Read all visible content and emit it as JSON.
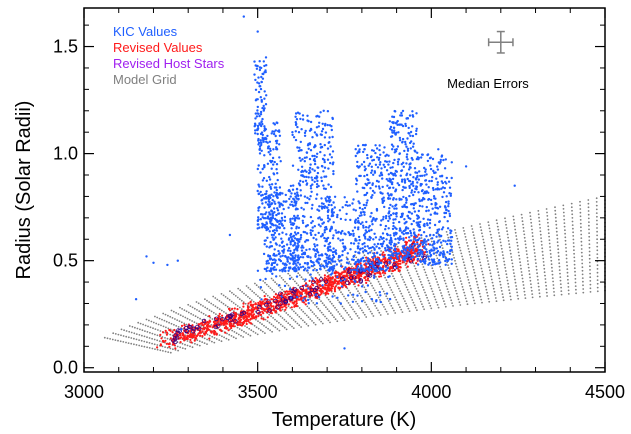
{
  "chart_data": {
    "type": "scatter",
    "title": "",
    "xlabel": "Temperature (K)",
    "ylabel": "Radius (Solar Radii)",
    "xlim": [
      3000,
      4500
    ],
    "ylim": [
      -0.02,
      1.68
    ],
    "xticks": [
      3000,
      3500,
      4000,
      4500
    ],
    "xtick_labels": [
      "3000",
      "3500",
      "4000",
      "4500"
    ],
    "yticks": [
      0.0,
      0.5,
      1.0,
      1.5
    ],
    "ytick_labels": [
      "0.0",
      "0.5",
      "1.0",
      "1.5"
    ],
    "x_minor_step": 100,
    "y_minor_step": 0.1,
    "grid": false,
    "legend_position": "top-left",
    "series": [
      {
        "name": "KIC Values",
        "color": "#1f5fff",
        "marker": "dot",
        "clusters": [
          {
            "x": [
              3490,
              3525
            ],
            "y": [
              1.05,
              1.45
            ],
            "n": 90
          },
          {
            "x": [
              3500,
              3570
            ],
            "y": [
              0.65,
              1.15
            ],
            "n": 180
          },
          {
            "x": [
              3520,
              3620
            ],
            "y": [
              0.45,
              0.85
            ],
            "n": 260
          },
          {
            "x": [
              3600,
              3720
            ],
            "y": [
              0.45,
              1.2
            ],
            "n": 420
          },
          {
            "x": [
              3700,
              3780
            ],
            "y": [
              0.45,
              0.8
            ],
            "n": 90
          },
          {
            "x": [
              3780,
              3880
            ],
            "y": [
              0.45,
              1.05
            ],
            "n": 340
          },
          {
            "x": [
              3880,
              3960
            ],
            "y": [
              0.5,
              1.2
            ],
            "n": 360
          },
          {
            "x": [
              3960,
              4060
            ],
            "y": [
              0.48,
              1.0
            ],
            "n": 300
          },
          {
            "x": [
              3500,
              3900
            ],
            "y": [
              0.3,
              0.55
            ],
            "n": 90
          }
        ],
        "outliers": [
          [
            3460,
            1.64
          ],
          [
            3500,
            1.57
          ],
          [
            3520,
            1.38
          ],
          [
            3690,
            1.2
          ],
          [
            3180,
            0.52
          ],
          [
            3200,
            0.49
          ],
          [
            3240,
            0.48
          ],
          [
            3270,
            0.5
          ],
          [
            3150,
            0.32
          ],
          [
            3750,
            0.09
          ],
          [
            4240,
            0.85
          ],
          [
            4100,
            0.94
          ],
          [
            4020,
            1.02
          ],
          [
            3600,
            1.1
          ],
          [
            3420,
            0.62
          ],
          [
            3280,
            0.18
          ]
        ]
      },
      {
        "name": "Revised Values",
        "color": "#ff1a1a",
        "marker": "dot",
        "band": {
          "t0": [
            3200,
            3250
          ],
          "t1": [
            3950,
            4000
          ],
          "r0": [
            0.1,
            0.15
          ],
          "r1": [
            0.52,
            0.6
          ],
          "n": 1400
        }
      },
      {
        "name": "Revised Host Stars",
        "color": "#a020f0",
        "marker": "open-circle",
        "band": {
          "t0": [
            3230,
            3260
          ],
          "t1": [
            3950,
            3995
          ],
          "r0": [
            0.12,
            0.16
          ],
          "r1": [
            0.5,
            0.58
          ],
          "n": 90
        }
      },
      {
        "name": "Model Grid",
        "color": "#808080",
        "marker": "dot",
        "tracks": {
          "count": 26,
          "t_start": [
            3060,
            3250
          ],
          "r_start": [
            0.14,
            0.07
          ],
          "t_end": 4500,
          "r_end": [
            0.8,
            0.36
          ]
        }
      }
    ],
    "annotations": [
      {
        "text": "Median Errors",
        "x": 4250,
        "y": 1.3
      },
      {
        "type": "errorbar",
        "x": 4200,
        "y": 1.52,
        "xerr": 35,
        "yerr": 0.05,
        "color": "#808080"
      }
    ]
  }
}
